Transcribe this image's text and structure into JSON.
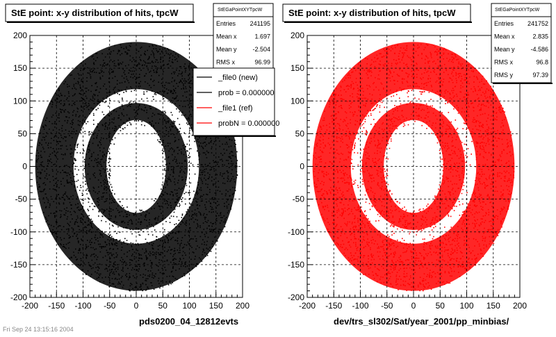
{
  "bottom_left_text": "Fri Sep 24 13:15:16 2004",
  "chart_data": [
    {
      "type": "scatter",
      "title": "StE point: x-y distribution of hits, tpcW",
      "xlabel": "pds0200_04_12812evts",
      "ylabel": "",
      "xlim": [
        -200,
        200
      ],
      "ylim": [
        -200,
        200
      ],
      "xticks": [
        -200,
        -150,
        -100,
        -50,
        0,
        50,
        100,
        150,
        200
      ],
      "yticks": [
        -200,
        -150,
        -100,
        -50,
        0,
        50,
        100,
        150,
        200
      ],
      "grid": true,
      "color": "#000000",
      "series": [
        {
          "description": "dense annular hit distribution",
          "outer_radius": 190,
          "inner_gap": [
            100,
            115
          ],
          "hole": {
            "rx": 50,
            "ry": 65
          }
        }
      ],
      "stats": {
        "header": "StEGaPointXYTpcW",
        "rows": [
          {
            "label": "Entries",
            "value": "241195"
          },
          {
            "label": "Mean x",
            "value": "1.697"
          },
          {
            "label": "Mean y",
            "value": "-2.504"
          },
          {
            "label": "RMS x",
            "value": "96.99"
          },
          {
            "label": "RMS y",
            "value": "97.47"
          }
        ]
      },
      "legend": {
        "placement": "top-right",
        "entries": [
          {
            "label": "_file0 (new)",
            "color": "#000000"
          },
          {
            "label": "prob = 0.000000",
            "color": "#000000"
          },
          {
            "label": "_file1 (ref)",
            "color": "#ff0000"
          },
          {
            "label": "probN = 0.000000",
            "color": "#ff0000"
          }
        ]
      }
    },
    {
      "type": "scatter",
      "title": "StE point: x-y distribution of hits, tpcW",
      "xlabel": "dev/trs_sl302/Sat/year_2001/pp_minbias/",
      "ylabel": "",
      "xlim": [
        -200,
        200
      ],
      "ylim": [
        -200,
        200
      ],
      "xticks": [
        -200,
        -150,
        -100,
        -50,
        0,
        50,
        100,
        150,
        200
      ],
      "yticks": [
        -200,
        -150,
        -100,
        -50,
        0,
        50,
        100,
        150,
        200
      ],
      "grid": true,
      "color": "#ff0000",
      "series": [
        {
          "description": "dense annular hit distribution",
          "outer_radius": 190,
          "inner_gap": [
            100,
            115
          ],
          "hole": {
            "rx": 50,
            "ry": 65
          }
        }
      ],
      "stats": {
        "header": "StEGaPointXYTpcW",
        "rows": [
          {
            "label": "Entries",
            "value": "241752"
          },
          {
            "label": "Mean x",
            "value": "2.835"
          },
          {
            "label": "Mean y",
            "value": "-4.586"
          },
          {
            "label": "RMS x",
            "value": "96.8"
          },
          {
            "label": "RMS y",
            "value": "97.39"
          }
        ]
      }
    }
  ]
}
